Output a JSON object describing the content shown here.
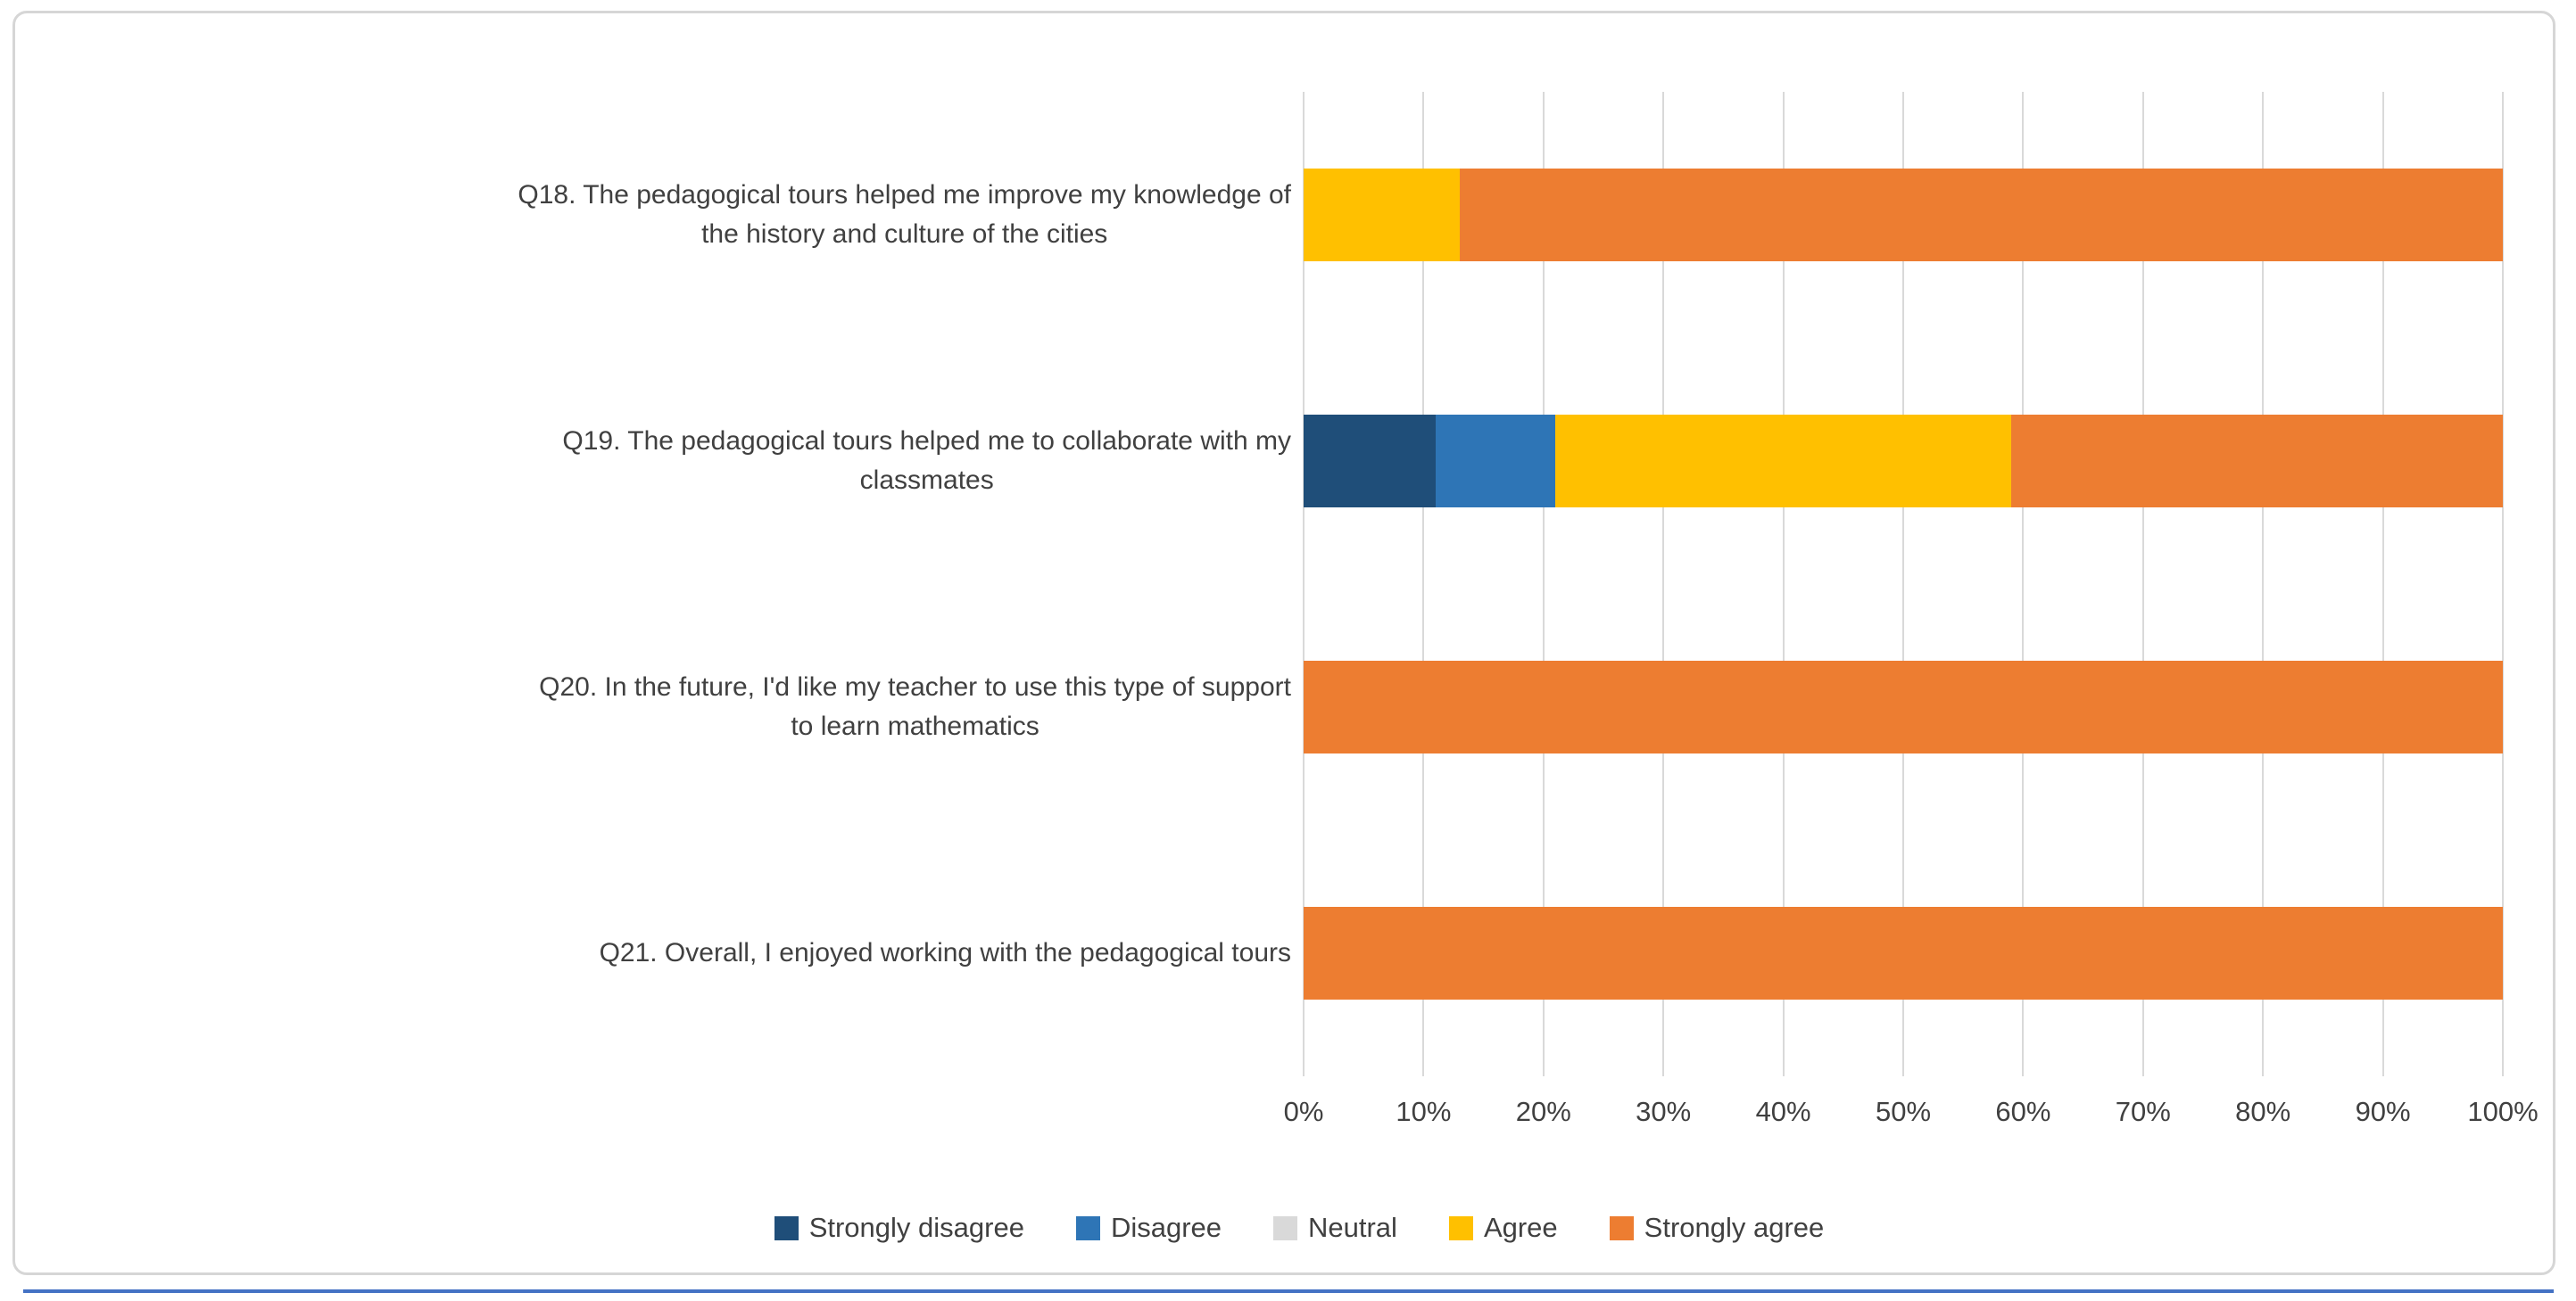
{
  "chart_data": {
    "type": "bar",
    "subtype": "stacked-horizontal-100pct",
    "title": "",
    "xlabel": "",
    "ylabel": "",
    "xlim": [
      0,
      100
    ],
    "grid": true,
    "legend_position": "bottom",
    "categories": [
      "Q18. The pedagogical tours helped me improve my knowledge of the history and culture of the cities",
      "Q19. The pedagogical tours helped me to collaborate with my classmates",
      "Q20. In the future, I'd like my teacher to use this type of support to learn mathematics",
      "Q21. Overall, I enjoyed working with the pedagogical tours"
    ],
    "category_lines": [
      [
        "Q18. The pedagogical tours helped me improve my knowledge of",
        "the history and culture of the cities"
      ],
      [
        "Q19. The pedagogical tours helped me to collaborate with my",
        "classmates"
      ],
      [
        "Q20. In the future, I'd like my teacher to use this type of support",
        "to learn mathematics"
      ],
      [
        "Q21. Overall, I enjoyed working with the pedagogical tours"
      ]
    ],
    "series": [
      {
        "name": "Strongly disagree",
        "color": "#1F4E79",
        "values": [
          0,
          11,
          0,
          0
        ]
      },
      {
        "name": "Disagree",
        "color": "#2E75B6",
        "values": [
          0,
          10,
          0,
          0
        ]
      },
      {
        "name": "Neutral",
        "color": "#D9D9D9",
        "values": [
          0,
          0,
          0,
          0
        ]
      },
      {
        "name": "Agree",
        "color": "#FFC000",
        "values": [
          13,
          38,
          0,
          0
        ]
      },
      {
        "name": "Strongly agree",
        "color": "#ED7D31",
        "values": [
          87,
          41,
          100,
          100
        ]
      }
    ],
    "x_ticks": [
      "0%",
      "10%",
      "20%",
      "30%",
      "40%",
      "50%",
      "60%",
      "70%",
      "80%",
      "90%",
      "100%"
    ],
    "colors": {
      "gridline": "#D9D9D9",
      "text": "#404040",
      "frame_border": "#D6D6D6",
      "bottom_rule": "#4472C4"
    }
  }
}
